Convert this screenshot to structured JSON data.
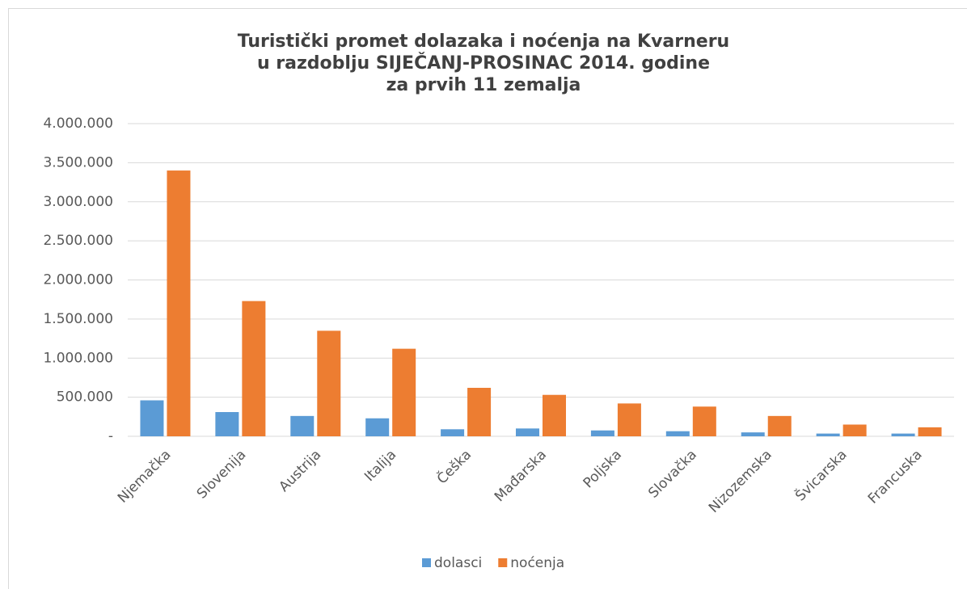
{
  "chart_data": {
    "type": "bar",
    "title": [
      "Turistički promet dolazaka i noćenja na Kvarneru",
      "u razdoblju SIJEČANJ-PROSINAC 2014. godine",
      "za prvih 11 zemalja"
    ],
    "categories": [
      "Njemačka",
      "Slovenija",
      "Austrija",
      "Italija",
      "Češka",
      "Mađarska",
      "Poljska",
      "Slovačka",
      "Nizozemska",
      "Švicarska",
      "Francuska"
    ],
    "series": [
      {
        "name": "dolasci",
        "color": "#5b9bd5",
        "values": [
          460000,
          310000,
          260000,
          230000,
          90000,
          100000,
          75000,
          65000,
          50000,
          35000,
          35000
        ]
      },
      {
        "name": "noćenja",
        "color": "#ed7d31",
        "values": [
          3400000,
          1730000,
          1350000,
          1120000,
          620000,
          530000,
          420000,
          380000,
          260000,
          150000,
          115000
        ]
      }
    ],
    "ylim": [
      0,
      4000000
    ],
    "yticks": [
      {
        "value": 0,
        "label": "-"
      },
      {
        "value": 500000,
        "label": "500.000"
      },
      {
        "value": 1000000,
        "label": "1.000.000"
      },
      {
        "value": 1500000,
        "label": "1.500.000"
      },
      {
        "value": 2000000,
        "label": "2.000.000"
      },
      {
        "value": 2500000,
        "label": "2.500.000"
      },
      {
        "value": 3000000,
        "label": "3.000.000"
      },
      {
        "value": 3500000,
        "label": "3.500.000"
      },
      {
        "value": 4000000,
        "label": "4.000.000"
      }
    ],
    "grid": true,
    "legend": "bottom"
  }
}
